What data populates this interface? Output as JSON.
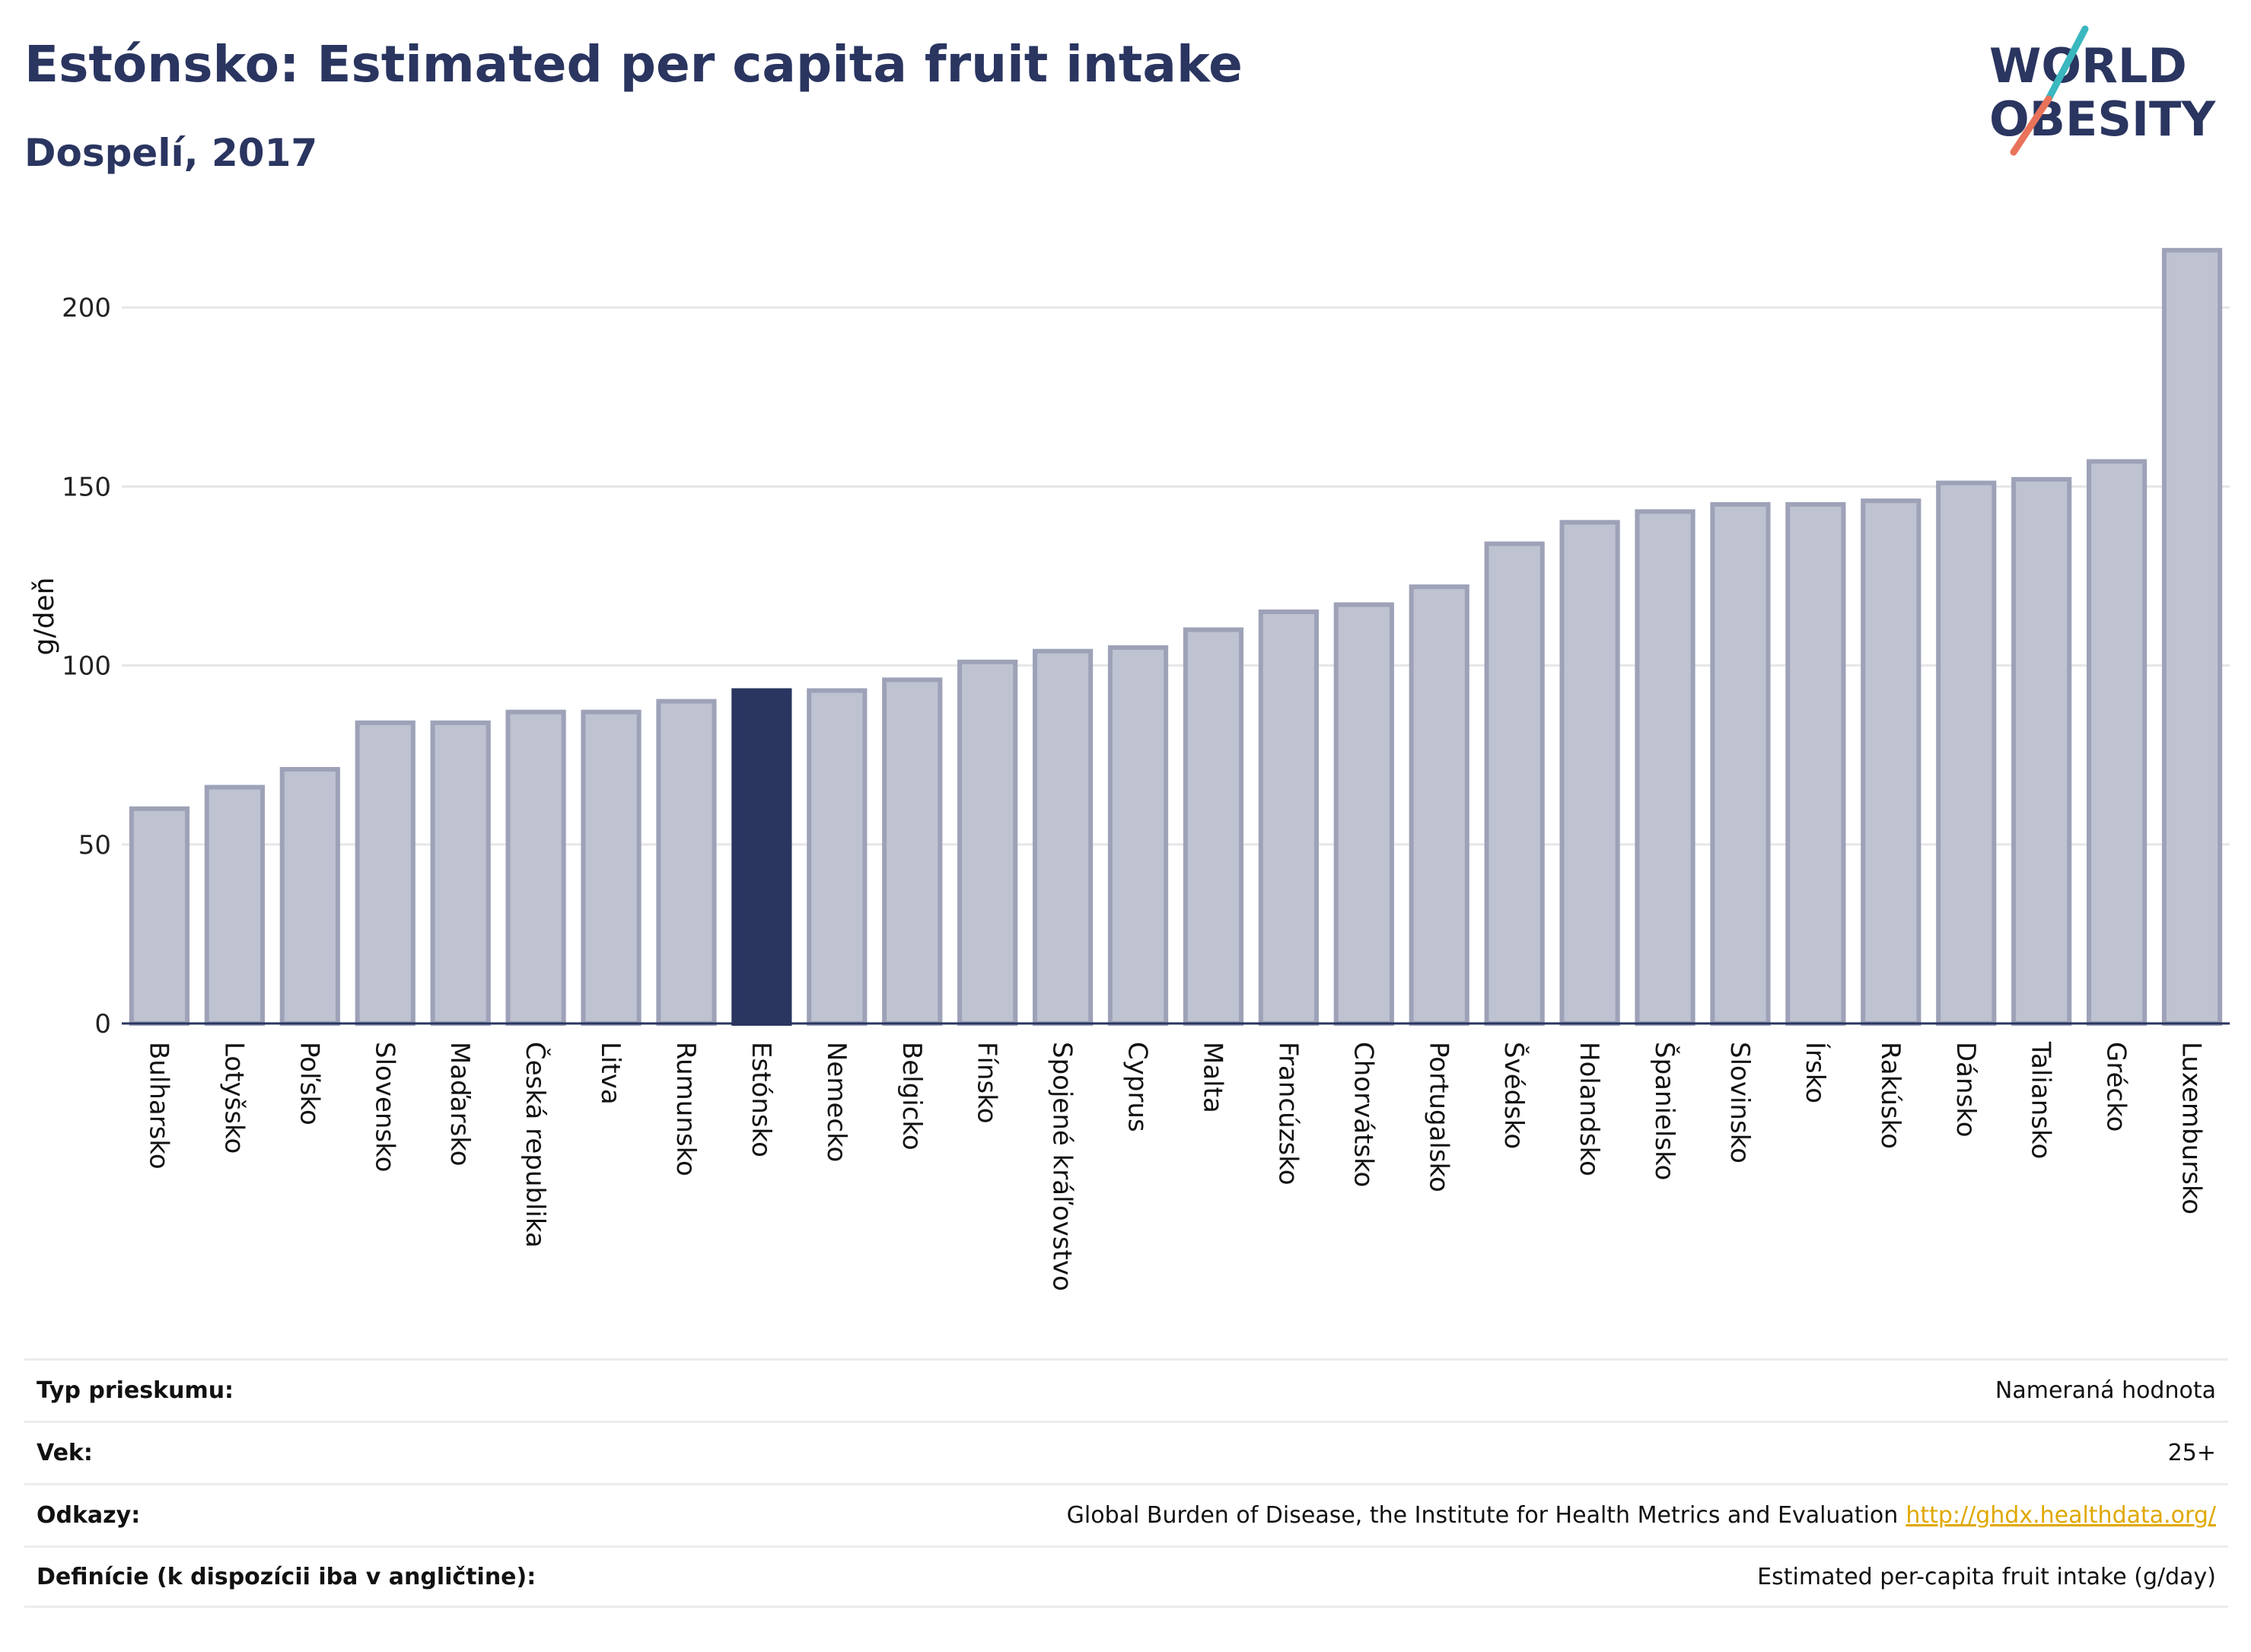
{
  "header": {
    "title": "Estónsko: Estimated per capita fruit intake",
    "subtitle": "Dospelí, 2017"
  },
  "logo": {
    "line1": "WORLD",
    "line2": "OBESITY"
  },
  "colors": {
    "highlight": "#2a3560",
    "bar_fill": "#bfc2d0",
    "bar_stroke": "#9ea2b8",
    "accent_slash_top": "#3ab7bf",
    "accent_slash_bottom": "#e8735a"
  },
  "chart_data": {
    "type": "bar",
    "ylabel": "g/deň",
    "ylim": [
      0,
      220
    ],
    "yticks": [
      0,
      50,
      100,
      150,
      200
    ],
    "grid": true,
    "highlight": "Estónsko",
    "categories": [
      "Bulharsko",
      "Lotyšsko",
      "Poľsko",
      "Slovensko",
      "Maďarsko",
      "Česká republika",
      "Litva",
      "Rumunsko",
      "Estónsko",
      "Nemecko",
      "Belgicko",
      "Fínsko",
      "Spojené kráľovstvo",
      "Cyprus",
      "Malta",
      "Francúzsko",
      "Chorvátsko",
      "Portugalsko",
      "Švédsko",
      "Holandsko",
      "Španielsko",
      "Slovinsko",
      "Írsko",
      "Rakúsko",
      "Dánsko",
      "Taliansko",
      "Grécko",
      "Luxembursko"
    ],
    "values": [
      60,
      66,
      71,
      84,
      84,
      87,
      87,
      90,
      93,
      93,
      96,
      101,
      104,
      105,
      110,
      115,
      117,
      122,
      134,
      140,
      143,
      145,
      145,
      146,
      151,
      152,
      157,
      216
    ]
  },
  "info": [
    {
      "key": "Typ prieskumu:",
      "value": "Nameraná hodnota",
      "link": ""
    },
    {
      "key": "Vek:",
      "value": "25+",
      "link": ""
    },
    {
      "key": "Odkazy:",
      "value": "Global Burden of Disease, the Institute for Health Metrics and Evaluation",
      "link": "http://ghdx.healthdata.org/"
    },
    {
      "key": "Definície (k dispozícii iba v angličtine):",
      "value": "Estimated per-capita fruit intake (g/day)",
      "link": ""
    }
  ]
}
